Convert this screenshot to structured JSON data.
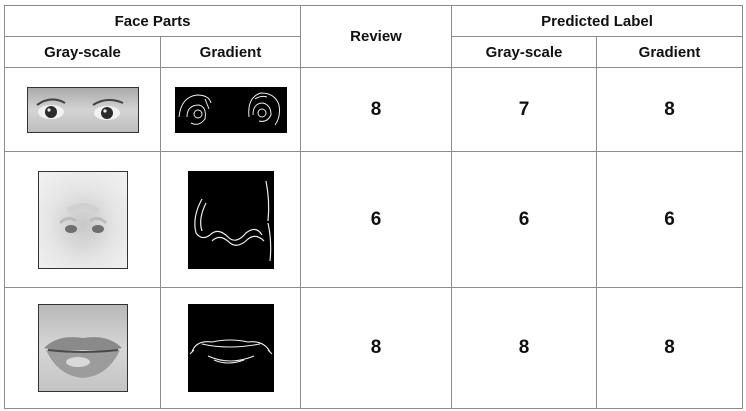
{
  "headers": {
    "face_parts": "Face Parts",
    "review": "Review",
    "predicted_label": "Predicted Label",
    "gray_scale": "Gray-scale",
    "gradient": "Gradient",
    "pred_gray_scale": "Gray-scale",
    "pred_gradient": "Gradient"
  },
  "rows": [
    {
      "part": "eyes",
      "review": "8",
      "pred_gray": "7",
      "pred_gradient": "8"
    },
    {
      "part": "nose",
      "review": "6",
      "pred_gray": "6",
      "pred_gradient": "6"
    },
    {
      "part": "mouth",
      "review": "8",
      "pred_gray": "8",
      "pred_gradient": "8"
    }
  ]
}
